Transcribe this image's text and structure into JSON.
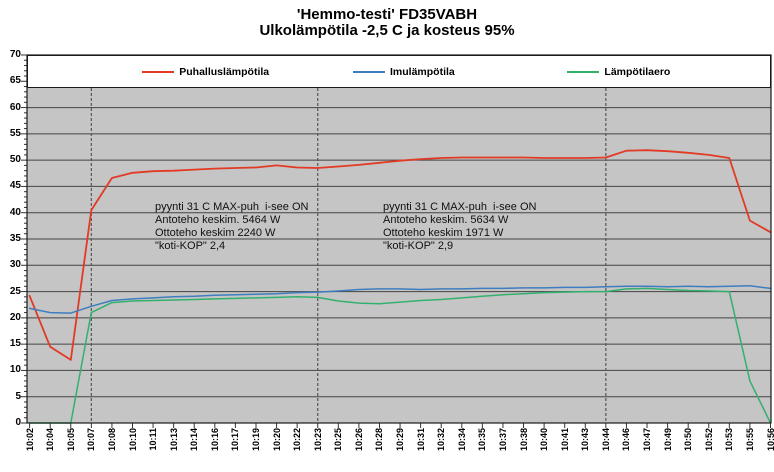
{
  "title": {
    "line1": "'Hemmo-testi' FD35VABH",
    "line2": "Ulkolämpötila -2,5 C ja kosteus 95%"
  },
  "chart_data": {
    "type": "line",
    "title": "'Hemmo-testi' FD35VABH",
    "subtitle": "Ulkolämpötila -2,5 C ja kosteus 95%",
    "xlabel": "",
    "ylabel": "",
    "ylim": [
      0,
      70
    ],
    "y_step": 5,
    "grid": true,
    "legend_position": "top",
    "plot_bg": "#c5c5c5",
    "grid_color": "#444444",
    "axis_color": "#1a1a1a",
    "event_line_color": "#555555",
    "event_lines": [
      "10:07",
      "10:23",
      "10:44"
    ],
    "categories": [
      "10:02",
      "10:04",
      "10:05",
      "10:07",
      "10:08",
      "10:10",
      "10:11",
      "10:13",
      "10:14",
      "10:16",
      "10:17",
      "10:19",
      "10:20",
      "10:22",
      "10:23",
      "10:25",
      "10:26",
      "10:28",
      "10:29",
      "10:31",
      "10:32",
      "10:34",
      "10:35",
      "10:37",
      "10:38",
      "10:40",
      "10:41",
      "10:43",
      "10:44",
      "10:46",
      "10:47",
      "10:49",
      "10:50",
      "10:52",
      "10:53",
      "10:55",
      "10:56"
    ],
    "series": [
      {
        "name": "Puhalluslämpötila",
        "color": "#e23a24",
        "width": 1.8,
        "values": [
          24.2,
          14.5,
          12.0,
          40.5,
          46.6,
          47.6,
          47.9,
          48.0,
          48.2,
          48.4,
          48.5,
          48.6,
          49.0,
          48.6,
          48.5,
          48.8,
          49.1,
          49.5,
          49.9,
          50.2,
          50.4,
          50.5,
          50.5,
          50.5,
          50.5,
          50.4,
          50.4,
          50.4,
          50.5,
          51.8,
          51.9,
          51.7,
          51.4,
          51.0,
          50.4,
          38.5,
          36.3
        ]
      },
      {
        "name": "Imulämpötila",
        "color": "#3e7dc0",
        "width": 1.5,
        "values": [
          21.8,
          21.0,
          20.9,
          22.2,
          23.3,
          23.6,
          23.8,
          24.0,
          24.1,
          24.3,
          24.4,
          24.5,
          24.6,
          24.8,
          24.9,
          25.1,
          25.4,
          25.5,
          25.5,
          25.4,
          25.5,
          25.5,
          25.6,
          25.6,
          25.7,
          25.7,
          25.8,
          25.8,
          25.9,
          26.0,
          26.0,
          25.9,
          26.0,
          25.9,
          26.0,
          26.1,
          25.6
        ]
      },
      {
        "name": "Lämpötilaero",
        "color": "#34b06e",
        "width": 1.5,
        "values": [
          0,
          0,
          0,
          21.0,
          22.9,
          23.2,
          23.3,
          23.4,
          23.5,
          23.6,
          23.7,
          23.8,
          23.9,
          24.0,
          23.9,
          23.2,
          22.8,
          22.7,
          23.0,
          23.3,
          23.5,
          23.8,
          24.1,
          24.4,
          24.6,
          24.8,
          24.9,
          25.0,
          25.0,
          25.5,
          25.6,
          25.4,
          25.2,
          25.1,
          25.0,
          8.0,
          0
        ]
      }
    ],
    "annotations": [
      {
        "lines": [
          "pyynti 31 C MAX-puh  i-see ON",
          "Antoteho keskim. 5464 W",
          "Ottoteho keskim 2240 W",
          "\"koti-KOP\" 2,4"
        ]
      },
      {
        "lines": [
          "pyynti 31 C MAX-puh  i-see ON",
          "Antoteho keskim. 5634 W",
          "Ottoteho keskim 1971 W",
          "\"koti-KOP\" 2,9"
        ]
      }
    ]
  },
  "legend": {
    "items": [
      {
        "label": "Puhalluslämpötila"
      },
      {
        "label": "Imulämpötila"
      },
      {
        "label": "Lämpötilaero"
      }
    ]
  }
}
